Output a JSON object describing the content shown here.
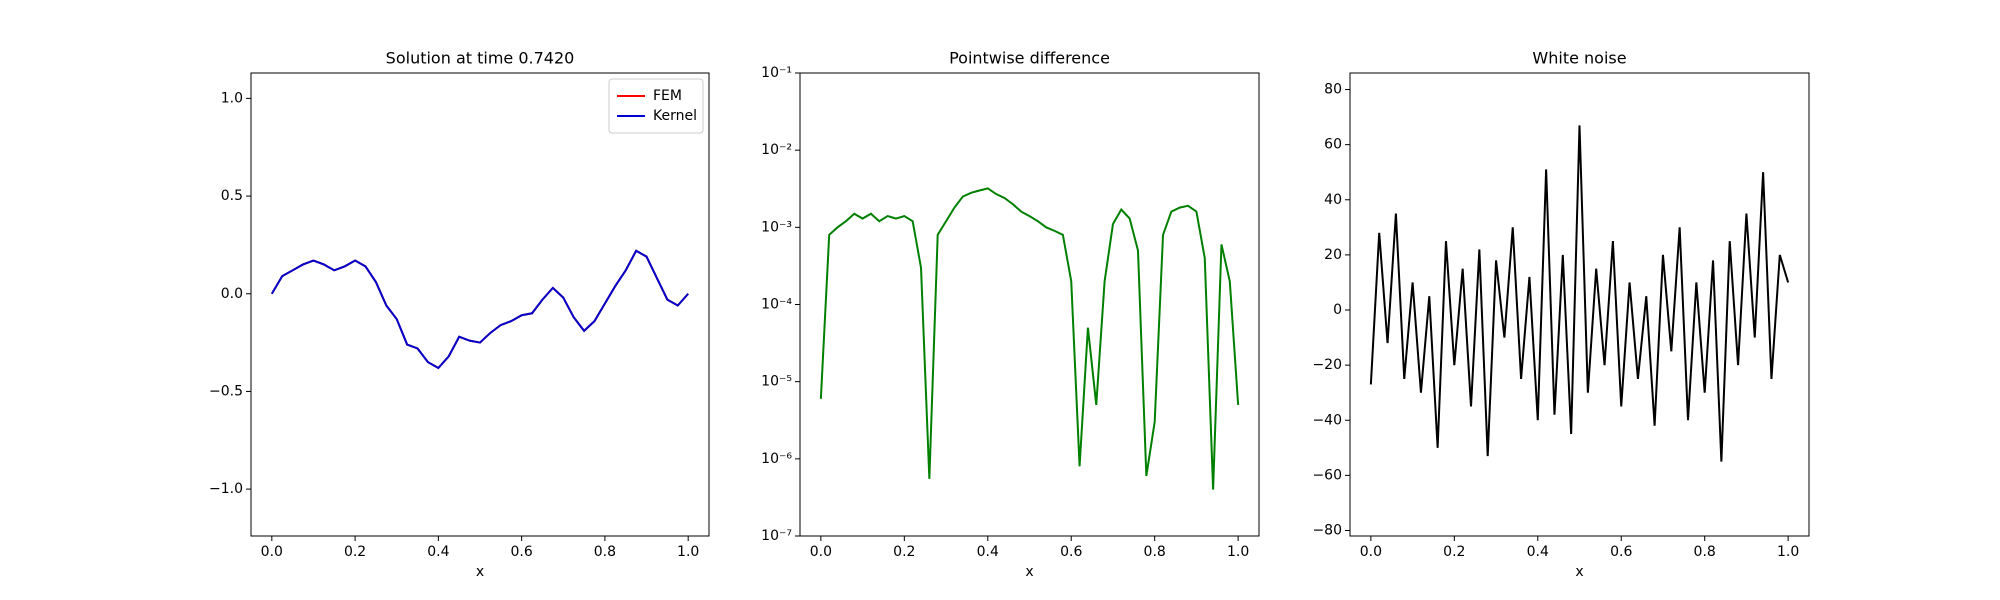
{
  "chart_data": [
    {
      "type": "line",
      "title": "Solution at time 0.7420",
      "xlabel": "x",
      "x": [
        0,
        0.025,
        0.05,
        0.075,
        0.1,
        0.125,
        0.15,
        0.175,
        0.2,
        0.225,
        0.25,
        0.275,
        0.3,
        0.325,
        0.35,
        0.375,
        0.4,
        0.425,
        0.45,
        0.475,
        0.5,
        0.525,
        0.55,
        0.575,
        0.6,
        0.625,
        0.65,
        0.675,
        0.7,
        0.725,
        0.75,
        0.775,
        0.8,
        0.825,
        0.85,
        0.875,
        0.9,
        0.925,
        0.95,
        0.975,
        1.0
      ],
      "series": [
        {
          "name": "FEM",
          "color": "#ff0000",
          "values": [
            0,
            0.09,
            0.12,
            0.15,
            0.17,
            0.15,
            0.12,
            0.14,
            0.17,
            0.14,
            0.06,
            -0.06,
            -0.13,
            -0.26,
            -0.28,
            -0.35,
            -0.38,
            -0.32,
            -0.22,
            -0.24,
            -0.25,
            -0.2,
            -0.16,
            -0.14,
            -0.11,
            -0.1,
            -0.03,
            0.03,
            -0.02,
            -0.12,
            -0.19,
            -0.14,
            -0.05,
            0.04,
            0.12,
            0.22,
            0.19,
            0.08,
            -0.03,
            -0.06,
            0
          ]
        },
        {
          "name": "Kernel",
          "color": "#0000cc",
          "values": [
            0,
            0.09,
            0.12,
            0.15,
            0.17,
            0.15,
            0.12,
            0.14,
            0.17,
            0.14,
            0.06,
            -0.06,
            -0.13,
            -0.26,
            -0.28,
            -0.35,
            -0.38,
            -0.32,
            -0.22,
            -0.24,
            -0.25,
            -0.2,
            -0.16,
            -0.14,
            -0.11,
            -0.1,
            -0.03,
            0.03,
            -0.02,
            -0.12,
            -0.19,
            -0.14,
            -0.05,
            0.04,
            0.12,
            0.22,
            0.19,
            0.08,
            -0.03,
            -0.06,
            0
          ]
        }
      ],
      "xlim": [
        -0.05,
        1.05
      ],
      "xticks": [
        {
          "value": 0,
          "label": "0.0"
        },
        {
          "value": 0.2,
          "label": "0.2"
        },
        {
          "value": 0.4,
          "label": "0.4"
        },
        {
          "value": 0.6,
          "label": "0.6"
        },
        {
          "value": 0.8,
          "label": "0.8"
        },
        {
          "value": 1,
          "label": "1.0"
        }
      ],
      "ylim": [
        -1.24,
        1.13
      ],
      "yticks": [
        {
          "value": -1,
          "label": "−1.0"
        },
        {
          "value": -0.5,
          "label": "−0.5"
        },
        {
          "value": 0,
          "label": "0.0"
        },
        {
          "value": 0.5,
          "label": "0.5"
        },
        {
          "value": 1,
          "label": "1.0"
        }
      ],
      "legend": "upper right"
    },
    {
      "type": "line",
      "title": "Pointwise difference",
      "xlabel": "x",
      "log_y": true,
      "x": [
        0,
        0.02,
        0.04,
        0.06,
        0.08,
        0.1,
        0.12,
        0.14,
        0.16,
        0.18,
        0.2,
        0.22,
        0.24,
        0.26,
        0.28,
        0.3,
        0.32,
        0.34,
        0.36,
        0.38,
        0.4,
        0.42,
        0.44,
        0.46,
        0.48,
        0.5,
        0.52,
        0.54,
        0.56,
        0.58,
        0.6,
        0.62,
        0.64,
        0.66,
        0.68,
        0.7,
        0.72,
        0.74,
        0.76,
        0.78,
        0.8,
        0.82,
        0.84,
        0.86,
        0.88,
        0.9,
        0.92,
        0.94,
        0.96,
        0.98,
        1.0
      ],
      "series": [
        {
          "color": "#008000",
          "values": [
            6e-06,
            0.0008,
            0.001,
            0.0012,
            0.0015,
            0.0013,
            0.0015,
            0.0012,
            0.0014,
            0.0013,
            0.0014,
            0.0012,
            0.0003,
            5.5e-07,
            0.0008,
            0.0012,
            0.0018,
            0.0025,
            0.0028,
            0.003,
            0.0032,
            0.0027,
            0.0024,
            0.002,
            0.0016,
            0.0014,
            0.0012,
            0.001,
            0.0009,
            0.0008,
            0.0002,
            8e-07,
            5e-05,
            5e-06,
            0.0002,
            0.0011,
            0.0017,
            0.0013,
            0.0005,
            6e-07,
            3e-06,
            0.0008,
            0.0016,
            0.0018,
            0.0019,
            0.0016,
            0.0004,
            4e-07,
            0.0006,
            0.0002,
            5e-06
          ]
        }
      ],
      "xlim": [
        -0.05,
        1.05
      ],
      "xticks": [
        {
          "value": 0,
          "label": "0.0"
        },
        {
          "value": 0.2,
          "label": "0.2"
        },
        {
          "value": 0.4,
          "label": "0.4"
        },
        {
          "value": 0.6,
          "label": "0.6"
        },
        {
          "value": 0.8,
          "label": "0.8"
        },
        {
          "value": 1,
          "label": "1.0"
        }
      ],
      "ylim": [
        1e-07,
        0.1
      ],
      "yticks": [
        {
          "value": 1e-07,
          "label": "10⁻⁷"
        },
        {
          "value": 1e-06,
          "label": "10⁻⁶"
        },
        {
          "value": 1e-05,
          "label": "10⁻⁵"
        },
        {
          "value": 0.0001,
          "label": "10⁻⁴"
        },
        {
          "value": 0.001,
          "label": "10⁻³"
        },
        {
          "value": 0.01,
          "label": "10⁻²"
        },
        {
          "value": 0.1,
          "label": "10⁻¹"
        }
      ]
    },
    {
      "type": "line",
      "title": "White noise",
      "xlabel": "x",
      "x": [
        0,
        0.02,
        0.04,
        0.06,
        0.08,
        0.1,
        0.12,
        0.14,
        0.16,
        0.18,
        0.2,
        0.22,
        0.24,
        0.26,
        0.28,
        0.3,
        0.32,
        0.34,
        0.36,
        0.38,
        0.4,
        0.42,
        0.44,
        0.46,
        0.48,
        0.5,
        0.52,
        0.54,
        0.56,
        0.58,
        0.6,
        0.62,
        0.64,
        0.66,
        0.68,
        0.7,
        0.72,
        0.74,
        0.76,
        0.78,
        0.8,
        0.82,
        0.84,
        0.86,
        0.88,
        0.9,
        0.92,
        0.94,
        0.96,
        0.98,
        1.0
      ],
      "series": [
        {
          "color": "#000000",
          "values": [
            -27,
            28,
            -12,
            35,
            -25,
            10,
            -30,
            5,
            -50,
            25,
            -20,
            15,
            -35,
            22,
            -53,
            18,
            -10,
            30,
            -25,
            12,
            -40,
            51,
            -38,
            20,
            -45,
            67,
            -30,
            15,
            -20,
            25,
            -35,
            10,
            -25,
            5,
            -42,
            20,
            -15,
            30,
            -40,
            10,
            -30,
            18,
            -55,
            25,
            -20,
            35,
            -10,
            50,
            -25,
            20,
            10
          ]
        }
      ],
      "xlim": [
        -0.05,
        1.05
      ],
      "xticks": [
        {
          "value": 0,
          "label": "0.0"
        },
        {
          "value": 0.2,
          "label": "0.2"
        },
        {
          "value": 0.4,
          "label": "0.4"
        },
        {
          "value": 0.6,
          "label": "0.6"
        },
        {
          "value": 0.8,
          "label": "0.8"
        },
        {
          "value": 1,
          "label": "1.0"
        }
      ],
      "ylim": [
        -82,
        86
      ],
      "yticks": [
        {
          "value": -80,
          "label": "−80"
        },
        {
          "value": -60,
          "label": "−60"
        },
        {
          "value": -40,
          "label": "−40"
        },
        {
          "value": -20,
          "label": "−20"
        },
        0,
        20,
        40,
        60,
        80
      ]
    }
  ]
}
